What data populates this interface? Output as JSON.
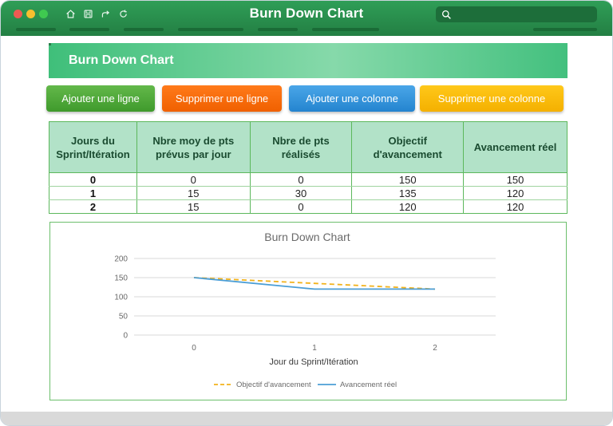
{
  "window": {
    "title": "Burn Down Chart",
    "search_placeholder": ""
  },
  "toolbar_icons": [
    "home-icon",
    "save-icon",
    "share-icon",
    "refresh-icon"
  ],
  "sheet": {
    "title": "Burn Down Chart"
  },
  "buttons": {
    "add_row": "Ajouter une ligne",
    "delete_row": "Supprimer une ligne",
    "add_column": "Ajouter une colonne",
    "delete_column": "Supprimer une colonne"
  },
  "table": {
    "headers": [
      [
        "Jours du",
        "Sprint/Itération"
      ],
      [
        "Nbre moy de pts",
        "prévus par jour"
      ],
      [
        "Nbre de pts",
        "réalisés"
      ],
      [
        "Objectif",
        "d'avancement"
      ],
      [
        "Avancement réel"
      ]
    ],
    "rows": [
      [
        "0",
        "0",
        "0",
        "150",
        "150"
      ],
      [
        "1",
        "15",
        "30",
        "135",
        "120"
      ],
      [
        "2",
        "15",
        "0",
        "120",
        "120"
      ]
    ]
  },
  "colors": {
    "titlebar": "#2f9e57",
    "header_fill": "#b2e2c8",
    "series_target": "#f2b21b",
    "series_actual": "#4b9ed6",
    "btn_add_row": "#4fa83a",
    "btn_delete_row": "#f86a0a",
    "btn_add_column": "#3596dc",
    "btn_delete_column": "#fbbd0a"
  },
  "chart_data": {
    "type": "line",
    "title": "Burn Down Chart",
    "xlabel": "Jour du Sprint/Itération",
    "ylabel": "",
    "x": [
      0,
      1,
      2
    ],
    "ylim": [
      0,
      200
    ],
    "yticks": [
      0,
      50,
      100,
      150,
      200
    ],
    "grid": true,
    "legend_placement": "bottom",
    "series": [
      {
        "name": "Objectif d'avancement",
        "values": [
          150,
          135,
          120
        ],
        "style": "dashed",
        "color": "#f2b21b"
      },
      {
        "name": "Avancement réel",
        "values": [
          150,
          120,
          120
        ],
        "style": "solid",
        "color": "#4b9ed6"
      }
    ]
  }
}
